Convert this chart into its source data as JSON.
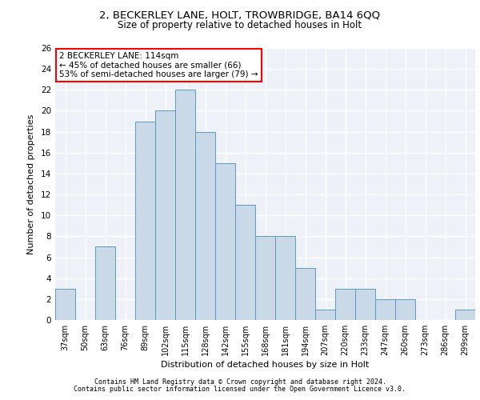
{
  "title_line1": "2, BECKERLEY LANE, HOLT, TROWBRIDGE, BA14 6QQ",
  "title_line2": "Size of property relative to detached houses in Holt",
  "xlabel": "Distribution of detached houses by size in Holt",
  "ylabel": "Number of detached properties",
  "categories": [
    "37sqm",
    "50sqm",
    "63sqm",
    "76sqm",
    "89sqm",
    "102sqm",
    "115sqm",
    "128sqm",
    "142sqm",
    "155sqm",
    "168sqm",
    "181sqm",
    "194sqm",
    "207sqm",
    "220sqm",
    "233sqm",
    "247sqm",
    "260sqm",
    "273sqm",
    "286sqm",
    "299sqm"
  ],
  "values": [
    3,
    0,
    7,
    0,
    19,
    20,
    22,
    18,
    15,
    11,
    8,
    8,
    5,
    1,
    3,
    3,
    2,
    2,
    0,
    0,
    1
  ],
  "bar_color": "#c9d9e8",
  "bar_edge_color": "#5a9abf",
  "highlight_bar_index": 6,
  "annotation_text": "2 BECKERLEY LANE: 114sqm\n← 45% of detached houses are smaller (66)\n53% of semi-detached houses are larger (79) →",
  "annotation_box_color": "white",
  "annotation_box_edge_color": "red",
  "ylim": [
    0,
    26
  ],
  "yticks": [
    0,
    2,
    4,
    6,
    8,
    10,
    12,
    14,
    16,
    18,
    20,
    22,
    24,
    26
  ],
  "background_color": "#eef2f8",
  "grid_color": "white",
  "footer_line1": "Contains HM Land Registry data © Crown copyright and database right 2024.",
  "footer_line2": "Contains public sector information licensed under the Open Government Licence v3.0."
}
